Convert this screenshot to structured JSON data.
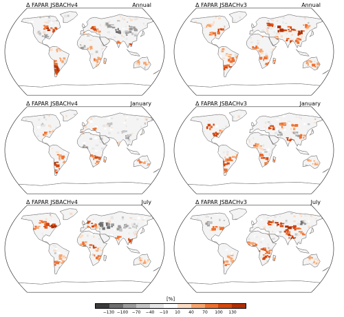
{
  "panels": [
    {
      "title": "Δ FAPAR JSBACHv4",
      "period": "Annual",
      "scheme": "v4annual"
    },
    {
      "title": "Δ FAPAR JSBACHv3",
      "period": "Annual",
      "scheme": "v3annual"
    },
    {
      "title": "Δ FAPAR JSBACHv4",
      "period": "January",
      "scheme": "v4jan"
    },
    {
      "title": "Δ FAPAR JSBACHv3",
      "period": "January",
      "scheme": "v3jan"
    },
    {
      "title": "Δ FAPAR JSBACHv4",
      "period": "July",
      "scheme": "v4jul"
    },
    {
      "title": "Δ FAPAR JSBACHv3",
      "period": "July",
      "scheme": "v3jul"
    }
  ],
  "colorbar": {
    "unit": "[%]",
    "ticks": [
      "−130",
      "−100",
      "−70",
      "−40",
      "−10",
      "10",
      "40",
      "70",
      "100",
      "130"
    ],
    "colors": [
      "#3a3a3a",
      "#6e6e6e",
      "#9c9c9c",
      "#c4c4c4",
      "#e6e6e6",
      "#ffffff",
      "#fcdcc4",
      "#f6a56e",
      "#ee7030",
      "#d4470e",
      "#b02f02"
    ]
  }
}
